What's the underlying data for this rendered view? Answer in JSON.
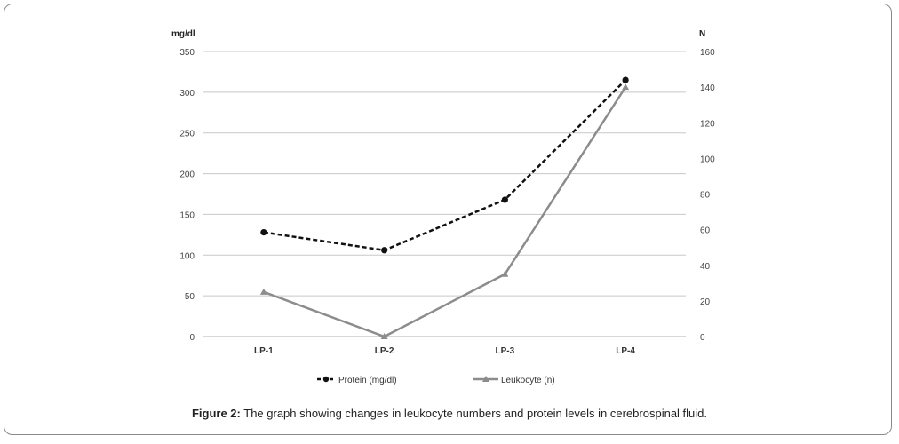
{
  "chart_data": {
    "type": "line",
    "categories": [
      "LP-1",
      "LP-2",
      "LP-3",
      "LP-4"
    ],
    "left_axis": {
      "label": "mg/dl",
      "ylim": [
        0,
        350
      ],
      "ticks": [
        "0",
        "50",
        "100",
        "150",
        "200",
        "250",
        "300",
        "350"
      ]
    },
    "right_axis": {
      "label": "N",
      "ylim": [
        0,
        160
      ],
      "ticks": [
        "0",
        "20",
        "40",
        "60",
        "80",
        "100",
        "120",
        "140",
        "160"
      ]
    },
    "series": [
      {
        "name": "Protein (mg/dl)",
        "axis": "left",
        "values": [
          128,
          106,
          168,
          315
        ],
        "color": "#111111",
        "style": "dashed",
        "marker": "circle"
      },
      {
        "name": "Leukocyte (n)",
        "axis": "right",
        "values": [
          25,
          0,
          35,
          140
        ],
        "color": "#8c8c8c",
        "style": "solid",
        "marker": "triangle"
      }
    ],
    "grid": true,
    "legend": "bottom-center"
  },
  "caption": {
    "label": "Figure 2:",
    "text": " The graph showing changes in leukocyte numbers and protein levels in cerebrospinal fluid."
  }
}
